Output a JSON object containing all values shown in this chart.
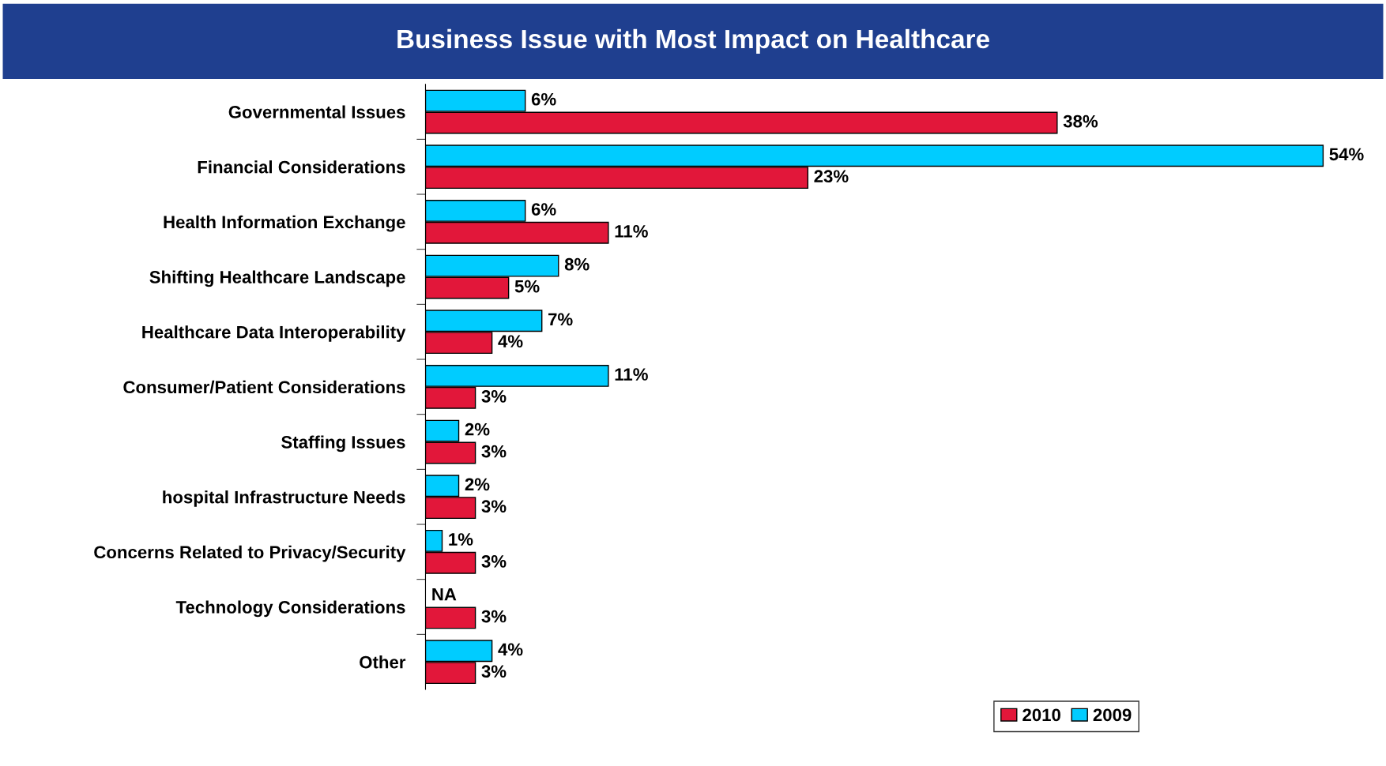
{
  "chart_data": {
    "type": "bar",
    "orientation": "horizontal",
    "title": "Business Issue with Most Impact on Healthcare",
    "categories": [
      "Governmental Issues",
      "Financial Considerations",
      "Health Information Exchange",
      "Shifting Healthcare Landscape",
      "Healthcare Data Interoperability",
      "Consumer/Patient Considerations",
      "Staffing Issues",
      "hospital Infrastructure Needs",
      "Concerns Related to Privacy/Security",
      "Technology Considerations",
      "Other"
    ],
    "series": [
      {
        "name": "2009",
        "color": "#00ccff",
        "values": [
          6,
          54,
          6,
          8,
          7,
          11,
          2,
          2,
          1,
          null,
          4
        ],
        "value_labels": [
          "6%",
          "54%",
          "6%",
          "8%",
          "7%",
          "11%",
          "2%",
          "2%",
          "1%",
          "NA",
          "4%"
        ]
      },
      {
        "name": "2010",
        "color": "#e2173a",
        "values": [
          38,
          23,
          11,
          5,
          4,
          3,
          3,
          3,
          3,
          3,
          3
        ],
        "value_labels": [
          "38%",
          "23%",
          "11%",
          "5%",
          "4%",
          "3%",
          "3%",
          "3%",
          "3%",
          "3%",
          "3%"
        ]
      }
    ],
    "tick_labels": "y",
    "grid": false,
    "legend": "bottom"
  }
}
